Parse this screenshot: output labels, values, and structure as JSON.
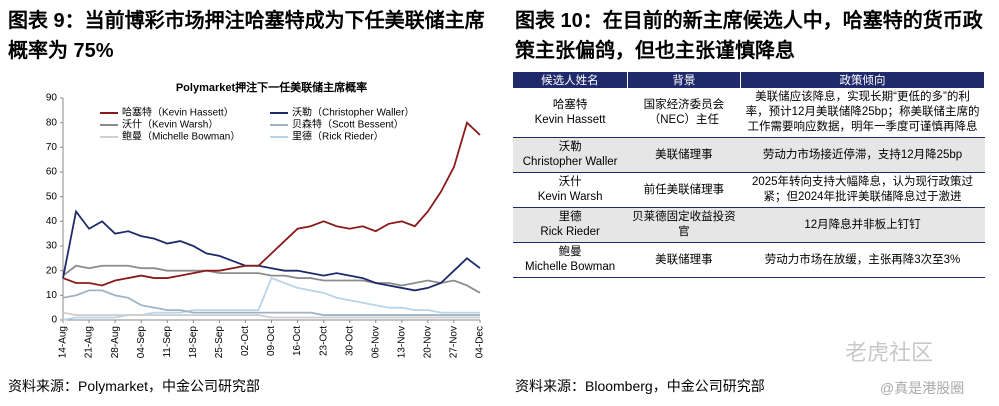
{
  "left": {
    "title": "图表 9：当前博彩市场押注哈塞特成为下任美联储主席概率为 75%",
    "source": "资料来源：Polymarket，中金公司研究部"
  },
  "chart_data": {
    "type": "line",
    "title": "Polymarket押注下一任美联储主席概率",
    "categories": [
      "14-Aug",
      null,
      "21-Aug",
      null,
      "28-Aug",
      null,
      "04-Sep",
      null,
      "11-Sep",
      null,
      "18-Sep",
      null,
      "25-Sep",
      null,
      "02-Oct",
      null,
      "09-Oct",
      null,
      "16-Oct",
      null,
      "23-Oct",
      null,
      "30-Oct",
      null,
      "06-Nov",
      null,
      "13-Nov",
      null,
      "20-Nov",
      null,
      "27-Nov",
      null,
      "04-Dec"
    ],
    "ylim": [
      0,
      90
    ],
    "yticks": [
      0,
      10,
      20,
      30,
      40,
      50,
      60,
      70,
      80,
      90
    ],
    "grid": false,
    "legend": "top",
    "series": [
      {
        "name": "哈塞特（Kevin Hassett）",
        "color": "#8b1a1a",
        "values": [
          17,
          15,
          15,
          14,
          16,
          17,
          18,
          17,
          17,
          18,
          19,
          20,
          20,
          21,
          22,
          22,
          27,
          32,
          37,
          38,
          40,
          38,
          37,
          38,
          36,
          39,
          40,
          38,
          44,
          52,
          62,
          80,
          75
        ]
      },
      {
        "name": "沃勒（Christopher Waller）",
        "color": "#1f2a6b",
        "values": [
          17,
          44,
          37,
          40,
          35,
          36,
          34,
          33,
          31,
          32,
          30,
          27,
          26,
          24,
          22,
          22,
          21,
          20,
          20,
          19,
          18,
          19,
          18,
          17,
          15,
          14,
          13,
          12,
          13,
          15,
          20,
          25,
          21
        ]
      },
      {
        "name": "沃什（Kevin Warsh）",
        "color": "#8c8c8c",
        "values": [
          18,
          22,
          21,
          22,
          22,
          22,
          21,
          21,
          20,
          20,
          20,
          20,
          19,
          19,
          19,
          19,
          18,
          18,
          17,
          17,
          16,
          16,
          16,
          16,
          15,
          15,
          14,
          15,
          16,
          15,
          16,
          14,
          11
        ]
      },
      {
        "name": "贝森特（Scott Bessent）",
        "color": "#9fb3c8",
        "values": [
          9,
          10,
          12,
          12,
          10,
          9,
          6,
          5,
          4,
          4,
          3,
          3,
          3,
          3,
          3,
          3,
          3,
          3,
          3,
          3,
          2,
          2,
          2,
          2,
          2,
          2,
          2,
          2,
          2,
          2,
          2,
          2,
          2
        ]
      },
      {
        "name": "鲍曼（Michelle Bowman）",
        "color": "#cfcfcf",
        "values": [
          3,
          2,
          2,
          2,
          2,
          2,
          2,
          2,
          2,
          2,
          2,
          2,
          2,
          2,
          2,
          2,
          1,
          1,
          1,
          1,
          1,
          1,
          1,
          1,
          1,
          1,
          1,
          1,
          1,
          1,
          1,
          1,
          1
        ]
      },
      {
        "name": "里德（Rick Rieder）",
        "color": "#b8d4ea",
        "values": [
          0,
          1,
          1,
          1,
          1,
          2,
          2,
          3,
          3,
          3,
          4,
          4,
          4,
          4,
          4,
          4,
          17,
          15,
          13,
          12,
          11,
          9,
          8,
          7,
          6,
          5,
          5,
          4,
          4,
          3,
          3,
          3,
          3
        ]
      }
    ]
  },
  "right": {
    "title": "图表 10：在目前的新主席候选人中，哈塞特的货币政策主张偏鸽，但也主张谨慎降息",
    "source": "资料来源：Bloomberg，中金公司研究部"
  },
  "table": {
    "header": [
      "候选人姓名",
      "背景",
      "政策倾向"
    ],
    "rows": [
      [
        [
          "哈塞特",
          "Kevin Hassett"
        ],
        "国家经济委员会（NEC）主任",
        "美联储应该降息，实现长期“更低的多”的利率，预计12月美联储降25bp；称美联储主席的工作需要响应数据，明年一季度可谨慎再降息"
      ],
      [
        [
          "沃勒",
          "Christopher Waller"
        ],
        "美联储理事",
        "劳动力市场接近停滞，支持12月降25bp"
      ],
      [
        [
          "沃什",
          "Kevin Warsh"
        ],
        "前任美联储理事",
        "2025年转向支持大幅降息，认为现行政策过紧；但2024年批评美联储降息过于激进"
      ],
      [
        [
          "里德",
          "Rick Rieder"
        ],
        "贝莱德固定收益投资官",
        "12月降息并非板上钉钉"
      ],
      [
        [
          "鲍曼",
          "Michelle Bowman"
        ],
        "美联储理事",
        "劳动力市场在放缓，主张再降3次至3%"
      ]
    ]
  },
  "watermark": [
    "老虎社区",
    "@真是港股圈"
  ]
}
